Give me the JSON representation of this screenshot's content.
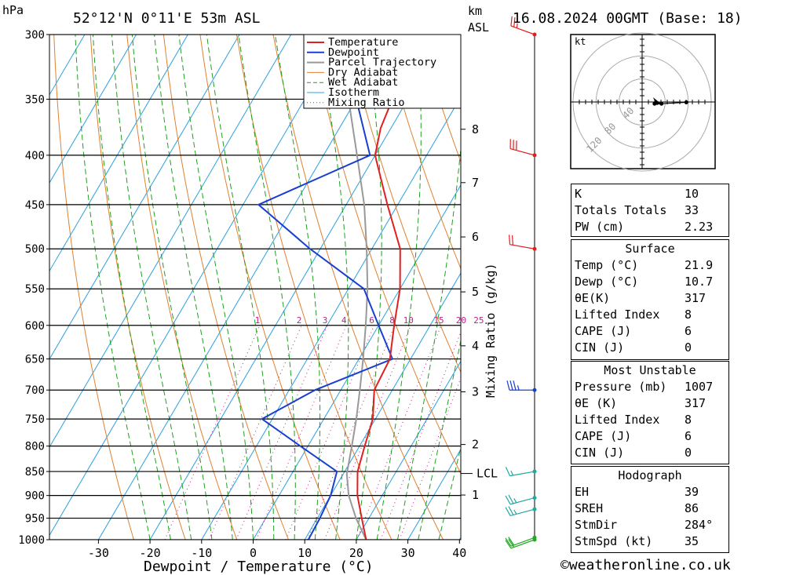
{
  "header": {
    "pressure_unit": "hPa",
    "location": "52°12'N  0°11'E  53m  ASL",
    "km_unit": "km",
    "asl_label": "ASL",
    "datetime": "16.08.2024  00GMT  (Base: 18)"
  },
  "chart_data": {
    "type": "skew-t log-p",
    "xlabel": "Dewpoint / Temperature (°C)",
    "mixing_ratio_label": "Mixing Ratio (g/kg)",
    "pressure_ticks": [
      300,
      350,
      400,
      450,
      500,
      550,
      600,
      650,
      700,
      750,
      800,
      850,
      900,
      950,
      1000
    ],
    "temp_ticks": [
      -30,
      -20,
      -10,
      0,
      10,
      20,
      30,
      40
    ],
    "km_ticks": [
      {
        "label": "8",
        "p": 376
      },
      {
        "label": "7",
        "p": 427
      },
      {
        "label": "6",
        "p": 486
      },
      {
        "label": "5",
        "p": 554
      },
      {
        "label": "4",
        "p": 630
      },
      {
        "label": "3",
        "p": 703
      },
      {
        "label": "2",
        "p": 797
      },
      {
        "label": "1",
        "p": 899
      }
    ],
    "lcl_label": "LCL",
    "lcl_p": 854,
    "mixing_ratio_values": [
      "1",
      "2",
      "3",
      "4",
      "6",
      "8",
      "10",
      "15",
      "20",
      "25"
    ],
    "legend": [
      "Temperature",
      "Dewpoint",
      "Parcel Trajectory",
      "Dry Adiabat",
      "Wet Adiabat",
      "Isotherm",
      "Mixing Ratio"
    ],
    "colors": {
      "temperature": "#e02020",
      "dewpoint": "#1a3fd0",
      "parcel": "#999999",
      "dry_adiabat": "#e08030",
      "wet_adiabat": "#1fa01f",
      "isotherm": "#2aa0e0",
      "mixing_ratio": "#c0208a"
    },
    "temperature": [
      [
        1000,
        21.9
      ],
      [
        950,
        18.6
      ],
      [
        900,
        15.2
      ],
      [
        850,
        12.5
      ],
      [
        800,
        11
      ],
      [
        750,
        9.5
      ],
      [
        700,
        6.5
      ],
      [
        650,
        6
      ],
      [
        600,
        3
      ],
      [
        550,
        0
      ],
      [
        500,
        -4.5
      ],
      [
        450,
        -12
      ],
      [
        400,
        -20
      ],
      [
        375,
        -22
      ],
      [
        350,
        -23
      ],
      [
        300,
        -31
      ]
    ],
    "dewpoint": [
      [
        1000,
        10.7
      ],
      [
        950,
        10.5
      ],
      [
        900,
        10
      ],
      [
        850,
        8.5
      ],
      [
        800,
        -1.5
      ],
      [
        750,
        -12
      ],
      [
        700,
        -5
      ],
      [
        650,
        6.5
      ],
      [
        600,
        0
      ],
      [
        550,
        -7
      ],
      [
        500,
        -22
      ],
      [
        450,
        -37
      ],
      [
        400,
        -21
      ],
      [
        350,
        -30
      ],
      [
        300,
        -41
      ]
    ],
    "parcel": [
      [
        1000,
        21.9
      ],
      [
        950,
        17.5
      ],
      [
        900,
        13.5
      ],
      [
        855,
        10.7
      ],
      [
        800,
        8.5
      ],
      [
        750,
        6.3
      ],
      [
        700,
        3.7
      ],
      [
        650,
        0.8
      ],
      [
        600,
        -2.5
      ],
      [
        550,
        -6.3
      ],
      [
        500,
        -11
      ],
      [
        450,
        -16.5
      ],
      [
        400,
        -23.5
      ],
      [
        350,
        -31.5
      ],
      [
        300,
        -42
      ]
    ],
    "wind_barbs": [
      {
        "p": 1000,
        "dir": 250,
        "kt": 20,
        "color": "#22a822"
      },
      {
        "p": 995,
        "dir": 250,
        "kt": 20,
        "color": "#22a822"
      },
      {
        "p": 930,
        "dir": 255,
        "kt": 25,
        "color": "#22a8a0"
      },
      {
        "p": 905,
        "dir": 255,
        "kt": 25,
        "color": "#22a8a0"
      },
      {
        "p": 850,
        "dir": 260,
        "kt": 15,
        "color": "#22a8a0"
      },
      {
        "p": 700,
        "dir": 270,
        "kt": 35,
        "color": "#1a3fd0"
      },
      {
        "p": 500,
        "dir": 280,
        "kt": 20,
        "color": "#e02020"
      },
      {
        "p": 400,
        "dir": 285,
        "kt": 30,
        "color": "#e02020"
      },
      {
        "p": 300,
        "dir": 290,
        "kt": 25,
        "color": "#e02020"
      }
    ]
  },
  "hodograph": {
    "unit": "kt",
    "ring_labels": [
      "40",
      "80",
      "120"
    ],
    "points": [
      [
        9,
        -5
      ],
      [
        14,
        -5
      ],
      [
        32,
        -1
      ]
    ],
    "storm_motion": [
      18,
      -3
    ]
  },
  "indices": {
    "rows": [
      {
        "label": "K",
        "value": "10"
      },
      {
        "label": "Totals Totals",
        "value": "33"
      },
      {
        "label": "PW (cm)",
        "value": "2.23"
      }
    ]
  },
  "surface": {
    "title": "Surface",
    "rows": [
      {
        "label": "Temp (°C)",
        "value": "21.9"
      },
      {
        "label": "Dewp (°C)",
        "value": "10.7"
      },
      {
        "label": "θE(K)",
        "value": "317"
      },
      {
        "label": "Lifted Index",
        "value": "8"
      },
      {
        "label": "CAPE (J)",
        "value": "6"
      },
      {
        "label": "CIN (J)",
        "value": "0"
      }
    ]
  },
  "most_unstable": {
    "title": "Most Unstable",
    "rows": [
      {
        "label": "Pressure (mb)",
        "value": "1007"
      },
      {
        "label": "θE (K)",
        "value": "317"
      },
      {
        "label": "Lifted Index",
        "value": "8"
      },
      {
        "label": "CAPE (J)",
        "value": "6"
      },
      {
        "label": "CIN (J)",
        "value": "0"
      }
    ]
  },
  "hodograph_table": {
    "title": "Hodograph",
    "rows": [
      {
        "label": "EH",
        "value": "39"
      },
      {
        "label": "SREH",
        "value": "86"
      },
      {
        "label": "StmDir",
        "value": "284°"
      },
      {
        "label": "StmSpd (kt)",
        "value": "35"
      }
    ]
  },
  "footer": {
    "copyright_symbol": "©",
    "site": "weatheronline.co.uk"
  }
}
